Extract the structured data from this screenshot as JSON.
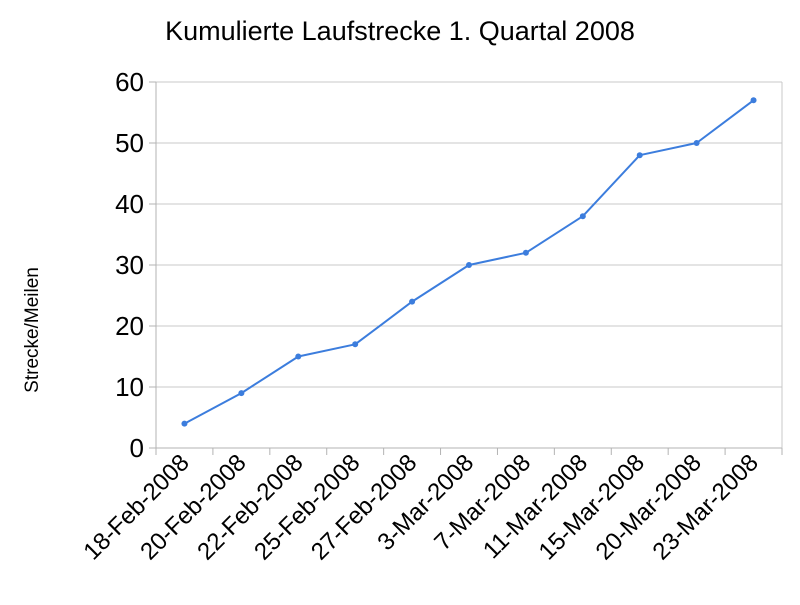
{
  "chart_data": {
    "type": "line",
    "title": "Kumulierte Laufstrecke 1. Quartal 2008",
    "xlabel": "",
    "ylabel": "Strecke/Meilen",
    "categories": [
      "18-Feb-2008",
      "20-Feb-2008",
      "22-Feb-2008",
      "25-Feb-2008",
      "27-Feb-2008",
      "3-Mar-2008",
      "7-Mar-2008",
      "11-Mar-2008",
      "15-Mar-2008",
      "20-Mar-2008",
      "23-Mar-2008"
    ],
    "series": [
      {
        "values": [
          4,
          9,
          15,
          17,
          24,
          30,
          32,
          38,
          48,
          50,
          57
        ]
      }
    ],
    "ylim": [
      0,
      60
    ],
    "yticks": [
      0,
      10,
      20,
      30,
      40,
      50,
      60
    ],
    "grid": true,
    "legend": "none",
    "line_color": "#3c7ddd",
    "grid_color": "#c8c8c8"
  }
}
